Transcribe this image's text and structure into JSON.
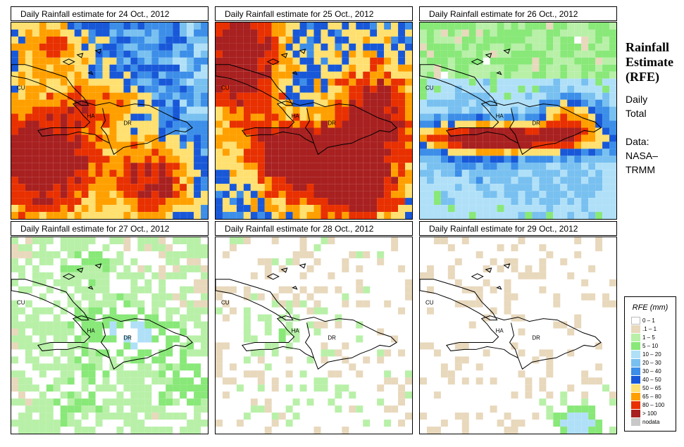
{
  "panels": [
    {
      "title": "Daily Rainfall estimate for  24 Oct., 2012",
      "date": "24 Oct., 2012",
      "scenario": "heavy_south"
    },
    {
      "title": "Daily Rainfall estimate for  25 Oct., 2012",
      "date": "25 Oct., 2012",
      "scenario": "heavy_all"
    },
    {
      "title": "Daily Rainfall estimate for  26 Oct., 2012",
      "date": "26 Oct., 2012",
      "scenario": "band_center"
    },
    {
      "title": "Daily Rainfall estimate for  27 Oct., 2012",
      "date": "27 Oct., 2012",
      "scenario": "light_green"
    },
    {
      "title": "Daily Rainfall estimate for  28 Oct., 2012",
      "date": "28 Oct., 2012",
      "scenario": "sparse"
    },
    {
      "title": "Daily Rainfall estimate for  29 Oct., 2012",
      "date": "29 Oct., 2012",
      "scenario": "very_sparse"
    }
  ],
  "map_labels": {
    "cuba": "CU",
    "haiti": "HA",
    "dominican_republic": "DR"
  },
  "side": {
    "title_line1": "Rainfall",
    "title_line2": "Estimate",
    "title_line3": "(RFE)",
    "period_line1": "Daily",
    "period_line2": "Total",
    "source_line1": "Data:",
    "source_line2": "NASA–",
    "source_line3": "TRMM"
  },
  "legend": {
    "title": "RFE (mm)",
    "items": [
      {
        "label": "0 – 1",
        "color": "#ffffff"
      },
      {
        "label": ".1 – 1",
        "color": "#e8d8bc"
      },
      {
        "label": "1 – 5",
        "color": "#b8f0a8"
      },
      {
        "label": "5 – 10",
        "color": "#88e878"
      },
      {
        "label": "10 – 20",
        "color": "#b0e0f8"
      },
      {
        "label": "20 – 30",
        "color": "#78c0f0"
      },
      {
        "label": "30 – 40",
        "color": "#3c8ee8"
      },
      {
        "label": "40 – 50",
        "color": "#1858d8"
      },
      {
        "label": "50 – 65",
        "color": "#ffe070"
      },
      {
        "label": "65 – 80",
        "color": "#ffa000"
      },
      {
        "label": "80 – 100",
        "color": "#e83000"
      },
      {
        "label": "> 100",
        "color": "#a82020"
      },
      {
        "label": "nodata",
        "color": "#c8c8c8"
      }
    ]
  }
}
